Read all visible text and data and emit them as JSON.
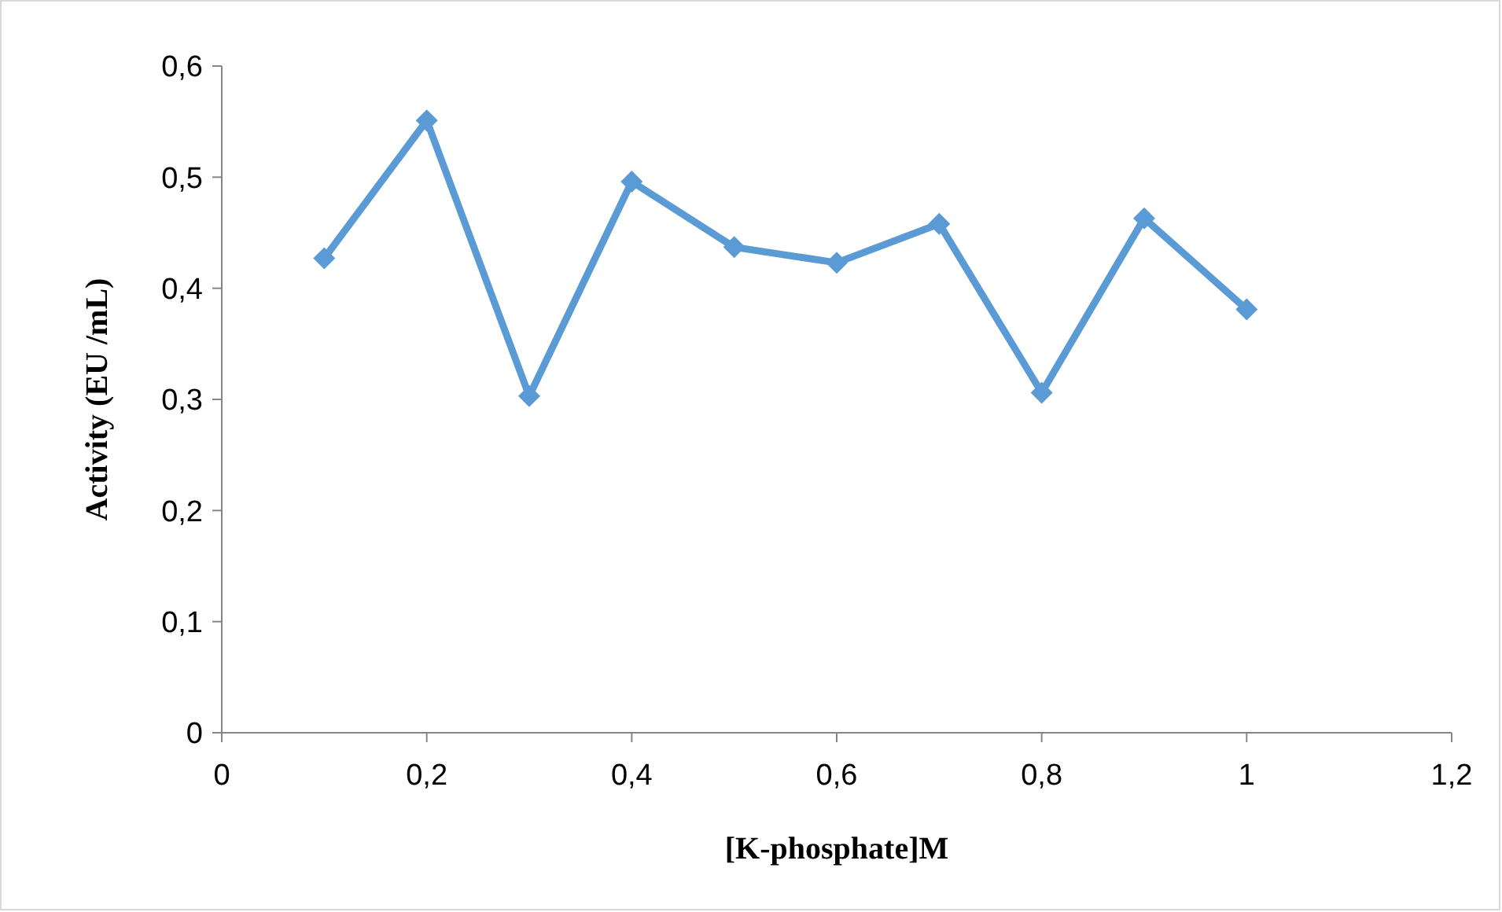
{
  "chart_data": {
    "type": "line",
    "xlabel": "[K-phosphate]M",
    "ylabel": "Activity (EU /mL)",
    "x": [
      0.1,
      0.2,
      0.3,
      0.4,
      0.5,
      0.6,
      0.7,
      0.8,
      0.9,
      1
    ],
    "series": [
      {
        "color": "#5b9bd5",
        "values": [
          0.427,
          0.551,
          0.303,
          0.496,
          0.437,
          0.423,
          0.458,
          0.306,
          0.463,
          0.381
        ]
      }
    ],
    "xlim": [
      0,
      1.2
    ],
    "xticks": [
      {
        "value": 0,
        "label": "0"
      },
      {
        "value": 0.2,
        "label": "0,2"
      },
      {
        "value": 0.4,
        "label": "0,4"
      },
      {
        "value": 0.6,
        "label": "0,6"
      },
      {
        "value": 0.8,
        "label": "0,8"
      },
      {
        "value": 1,
        "label": "1"
      },
      {
        "value": 1.2,
        "label": "1,2"
      }
    ],
    "ylim": [
      0,
      0.6
    ],
    "yticks": [
      {
        "value": 0,
        "label": "0"
      },
      {
        "value": 0.1,
        "label": "0,1"
      },
      {
        "value": 0.2,
        "label": "0,2"
      },
      {
        "value": 0.3,
        "label": "0,3"
      },
      {
        "value": 0.4,
        "label": "0,4"
      },
      {
        "value": 0.5,
        "label": "0,5"
      },
      {
        "value": 0.6,
        "label": "0,6"
      }
    ],
    "grid": false,
    "marker": "diamond",
    "line_style": "solid"
  }
}
